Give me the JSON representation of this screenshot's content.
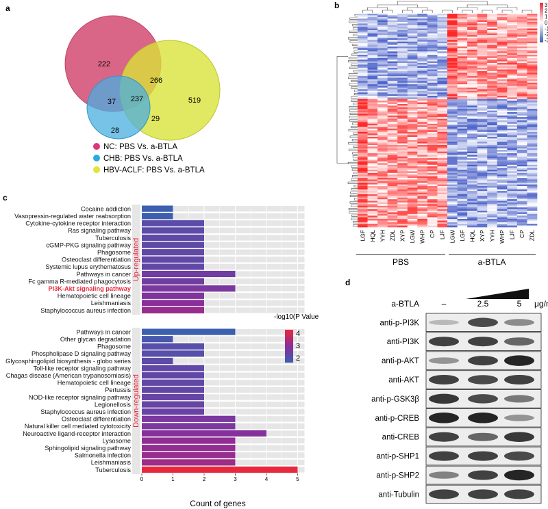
{
  "panel_labels": {
    "a": "a",
    "b": "b",
    "c": "c",
    "d": "d"
  },
  "colors": {
    "nc": "#d6557a",
    "chb": "#4aaedf",
    "hbv": "#d9e23a",
    "bar_low": "#3d5fb0",
    "bar_mid": "#8a2e9a",
    "bar_high": "#e8283c",
    "legend_dot_nc": "#e0337a",
    "legend_dot_chb": "#29a9e0",
    "legend_dot_hbv": "#e4e23c",
    "grid_bg": "#e6e6e6",
    "pi3k_label": "#e8283c"
  },
  "venn": {
    "regions": {
      "nc_only": "222",
      "nc_hbv": "266",
      "hbv_only": "519",
      "nc_chb": "37",
      "all": "237",
      "chb_hbv": "29",
      "chb_only": "28"
    },
    "legend": [
      {
        "label": "NC: PBS Vs. a-BTLA",
        "color": "#e0337a"
      },
      {
        "label": "CHB: PBS Vs. a-BTLA",
        "color": "#29a9e0"
      },
      {
        "label": "HBV-ACLF: PBS Vs. a-BTLA",
        "color": "#e4e23c"
      }
    ]
  },
  "heatmap": {
    "scale_ticks": [
      "3",
      "2",
      "1",
      "0",
      "-1",
      "-2",
      "-3"
    ],
    "pbs_samples": [
      "LGF",
      "HQL",
      "YYH",
      "ZDL",
      "XYP",
      "LGW",
      "WHP",
      "CP",
      "LJF"
    ],
    "btla_samples": [
      "LGW",
      "LGF",
      "HQL",
      "XYP",
      "YYH",
      "WHP",
      "LJF",
      "CP",
      "ZDL"
    ],
    "group_pbs": "PBS",
    "group_btla": "a-BTLA",
    "up_fraction": 0.4
  },
  "chart_data": {
    "type": "bar",
    "orientation": "horizontal",
    "xlabel": "Count of genes",
    "xlim": [
      0,
      5
    ],
    "x_ticks": [
      "0",
      "1",
      "2",
      "3",
      "4",
      "5"
    ],
    "legend_title": "-log10(P Value)",
    "legend_ticks": [
      "4",
      "3",
      "2"
    ],
    "groups": [
      {
        "name": "Up-regulated",
        "categories": [
          {
            "label": "Cocaine addiction",
            "count": 1,
            "p": 1.3
          },
          {
            "label": "Vasopressin-regulated water reabsorption",
            "count": 1,
            "p": 1.3
          },
          {
            "label": "Cytokine-cytokine receptor interaction",
            "count": 2,
            "p": 1.9
          },
          {
            "label": "Ras signaling pathway",
            "count": 2,
            "p": 1.9
          },
          {
            "label": "Tuberculosis",
            "count": 2,
            "p": 1.95
          },
          {
            "label": "cGMP-PKG signaling pathway",
            "count": 2,
            "p": 1.95
          },
          {
            "label": "Phagosome",
            "count": 2,
            "p": 2.0
          },
          {
            "label": "Osteoclast differentiation",
            "count": 2,
            "p": 2.0
          },
          {
            "label": "Systemic lupus erythematosus",
            "count": 2,
            "p": 2.0
          },
          {
            "label": "Pathways in cancer",
            "count": 3,
            "p": 2.3
          },
          {
            "label": "Fc gamma R-mediated phagocytosis",
            "count": 2,
            "p": 2.3
          },
          {
            "label": "PI3K-Akt signaling pathway",
            "count": 3,
            "p": 2.5
          },
          {
            "label": "Hematopoietic cell lineage",
            "count": 2,
            "p": 2.6
          },
          {
            "label": "Leishmaniasis",
            "count": 2,
            "p": 2.8
          },
          {
            "label": "Staphylococcus aureus infection",
            "count": 2,
            "p": 3.0
          }
        ]
      },
      {
        "name": "Down-regulated",
        "categories": [
          {
            "label": "Pathways in cancer",
            "count": 3,
            "p": 1.3
          },
          {
            "label": "Other glycan degradation",
            "count": 1,
            "p": 1.5
          },
          {
            "label": "Phagosome",
            "count": 2,
            "p": 1.8
          },
          {
            "label": "Phospholipase D signaling pathway",
            "count": 2,
            "p": 1.8
          },
          {
            "label": "Glycosphingolipid biosynthesis - globo series",
            "count": 1,
            "p": 1.9
          },
          {
            "label": "Toll-like receptor signaling pathway",
            "count": 2,
            "p": 2.0
          },
          {
            "label": "Chagas disease (American trypanosomiasis)",
            "count": 2,
            "p": 2.0
          },
          {
            "label": "Hematopoietic cell lineage",
            "count": 2,
            "p": 2.0
          },
          {
            "label": "Pertussis",
            "count": 2,
            "p": 2.05
          },
          {
            "label": "NOD-like receptor signaling pathway",
            "count": 2,
            "p": 2.1
          },
          {
            "label": "Legionellosis",
            "count": 2,
            "p": 2.1
          },
          {
            "label": "Staphylococcus aureus infection",
            "count": 2,
            "p": 2.2
          },
          {
            "label": "Osteoclast differentiation",
            "count": 3,
            "p": 2.5
          },
          {
            "label": "Natural killer cell mediated cytotoxicity",
            "count": 3,
            "p": 2.5
          },
          {
            "label": "Neuroactive ligand-receptor interaction",
            "count": 4,
            "p": 2.7
          },
          {
            "label": "Lysosome",
            "count": 3,
            "p": 2.9
          },
          {
            "label": "Sphingolipid signaling pathway",
            "count": 3,
            "p": 2.95
          },
          {
            "label": "Salmonella infection",
            "count": 3,
            "p": 3.0
          },
          {
            "label": "Leishmaniasis",
            "count": 3,
            "p": 3.1
          },
          {
            "label": "Tuberculosis",
            "count": 5,
            "p": 4.3
          }
        ]
      }
    ]
  },
  "western": {
    "treatment_label": "a-BTLA",
    "doses": [
      "–",
      "2.5",
      "5"
    ],
    "unit": "μg/ml",
    "rows": [
      {
        "label": "anti-p-PI3K",
        "intensity": [
          0.15,
          0.75,
          0.4
        ]
      },
      {
        "label": "anti-PI3K",
        "intensity": [
          0.8,
          0.8,
          0.6
        ]
      },
      {
        "label": "anti-p-AKT",
        "intensity": [
          0.35,
          0.8,
          0.95
        ]
      },
      {
        "label": "anti-AKT",
        "intensity": [
          0.8,
          0.75,
          0.8
        ]
      },
      {
        "label": "anti-p-GSK3β",
        "intensity": [
          0.85,
          0.75,
          0.5
        ]
      },
      {
        "label": "anti-p-CREB",
        "intensity": [
          0.95,
          0.95,
          0.35
        ]
      },
      {
        "label": "anti-CREB",
        "intensity": [
          0.8,
          0.6,
          0.85
        ]
      },
      {
        "label": "anti-p-SHP1",
        "intensity": [
          0.8,
          0.8,
          0.75
        ]
      },
      {
        "label": "anti-p-SHP2",
        "intensity": [
          0.45,
          0.8,
          0.95
        ]
      },
      {
        "label": "anti-Tubulin",
        "intensity": [
          0.8,
          0.8,
          0.8
        ]
      }
    ]
  }
}
